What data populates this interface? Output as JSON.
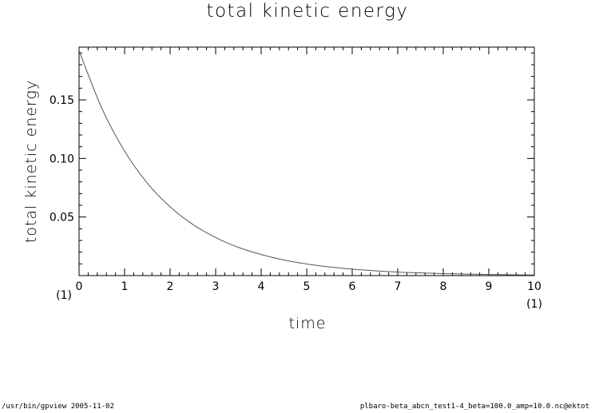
{
  "chart_data": {
    "type": "line",
    "title": "total kinetic energy",
    "xlabel": "time",
    "ylabel": "total kinetic energy",
    "xlim": [
      0,
      10
    ],
    "ylim": [
      0,
      0.195
    ],
    "x_ticks": [
      0,
      1,
      2,
      3,
      4,
      5,
      6,
      7,
      8,
      9,
      10
    ],
    "x_tick_labels": [
      "0",
      "1",
      "2",
      "3",
      "4",
      "5",
      "6",
      "7",
      "8",
      "9",
      "10"
    ],
    "y_ticks": [
      0.05,
      0.1,
      0.15
    ],
    "y_tick_labels": [
      "0.05",
      "0.10",
      "0.15"
    ],
    "x_scale_left": "(1)",
    "x_scale_right": "(1)",
    "grid": false,
    "series": [
      {
        "x": [
          0,
          0.5,
          1,
          1.5,
          2,
          2.5,
          3,
          3.5,
          4,
          4.5,
          5,
          5.5,
          6,
          6.5,
          7,
          7.5,
          8,
          8.5,
          9,
          9.5,
          10
        ],
        "y": [
          0.192,
          0.1428,
          0.1062,
          0.0789,
          0.0587,
          0.0436,
          0.0325,
          0.0241,
          0.018,
          0.0133,
          0.0099,
          0.0074,
          0.0055,
          0.0041,
          0.003,
          0.0023,
          0.0017,
          0.0013,
          0.0009,
          0.0007,
          0.0005
        ],
        "color": "#555555"
      }
    ]
  },
  "footer": {
    "left": "/usr/bin/gpview   2005-11-02",
    "right": "plbaro-beta_abcn_test1-4_beta=100.0_amp=10.0.nc@ektot"
  }
}
